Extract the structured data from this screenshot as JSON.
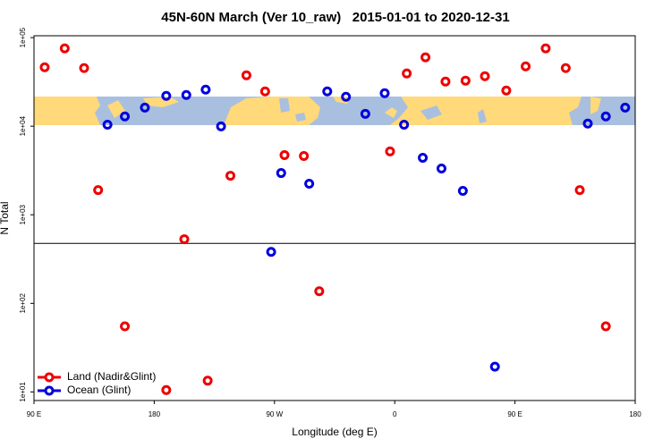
{
  "chart_data": {
    "type": "scatter",
    "title": "45N-60N March (Ver 10_raw)   2015-01-01 to 2020-12-31",
    "xlabel": "Longitude (deg E)",
    "ylabel": "N Total",
    "log_y": true,
    "legend": "lower left",
    "xlim": [
      90,
      540
    ],
    "ylim": [
      8,
      105000
    ],
    "xticks": [
      {
        "value": 90,
        "label": "90 E"
      },
      180,
      {
        "value": 270,
        "label": "90 W"
      },
      {
        "value": 360,
        "label": "0"
      },
      {
        "value": 450,
        "label": "90 E"
      },
      {
        "value": 540,
        "label": "180"
      }
    ],
    "yticks": [
      {
        "value": 10,
        "label": "1e+01"
      },
      {
        "value": 100,
        "label": "1e+02"
      },
      {
        "value": 1000,
        "label": "1e+03"
      },
      {
        "value": 10000,
        "label": "1e+04"
      },
      {
        "value": 100000,
        "label": "1e+05"
      }
    ],
    "hline": 475,
    "series": [
      {
        "name": "Land (Nadir&Glint)",
        "color": "#ee0000",
        "x": [
          98,
          113,
          127.5,
          138,
          158,
          189,
          202.5,
          220,
          237,
          249,
          263,
          277.5,
          292,
          303.5,
          356.5,
          369,
          383,
          398,
          413,
          427.5,
          443.5,
          458,
          473,
          488,
          498.5,
          518
        ],
        "values": [
          46300,
          75600,
          45300,
          1900,
          55,
          10.5,
          530,
          13.4,
          2760,
          37600,
          24700,
          4720,
          4610,
          137,
          5190,
          39400,
          59900,
          31900,
          32700,
          36700,
          25300,
          47400,
          75600,
          45300,
          1900,
          55
        ]
      },
      {
        "name": "Ocean (Glint)",
        "color": "#0000dd",
        "x": [
          145,
          158,
          173,
          189,
          204,
          218.5,
          230,
          267.5,
          275,
          296,
          309.5,
          323.5,
          338,
          352.5,
          367,
          381,
          395,
          411,
          435,
          504.5,
          518,
          532.5
        ],
        "values": [
          10400,
          12900,
          16200,
          22000,
          22500,
          25900,
          9950,
          381,
          2960,
          2240,
          24700,
          21500,
          13800,
          23600,
          10400,
          4400,
          3330,
          1860,
          19.3,
          10700,
          12900,
          16200
        ]
      }
    ]
  }
}
